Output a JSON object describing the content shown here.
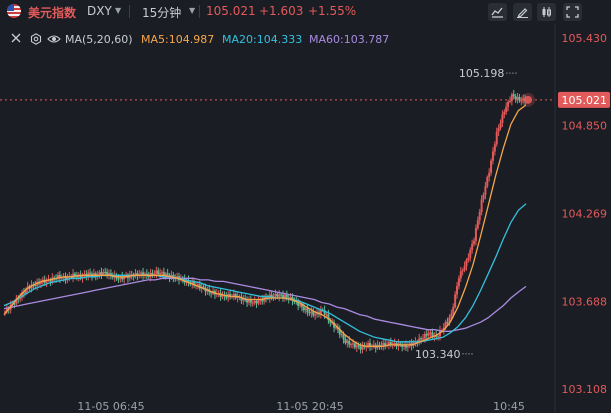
{
  "header": {
    "name": "美元指数",
    "code": "DXY",
    "interval": "15分钟",
    "price": "105.021",
    "change": "+1.603",
    "change_pct": "+1.55%"
  },
  "toolbar": {
    "icons": [
      "area-chart-icon",
      "draw-pen-icon",
      "candlestick-icon",
      "fullscreen-icon"
    ]
  },
  "indicator": {
    "icons": [
      "close-icon",
      "settings-icon",
      "eye-icon"
    ],
    "label": "MA(5,20,60)",
    "ma5": "MA5:104.987",
    "ma20": "MA20:104.333",
    "ma60": "MA60:103.787"
  },
  "colors": {
    "up": "#e35a5a",
    "down": "#5fbb97",
    "ma5": "#f5a64b",
    "ma20": "#34c0dd",
    "ma60": "#a98be0",
    "background": "#1b1d24"
  },
  "price_axis": [
    "105.430",
    "105.021",
    "104.850",
    "104.269",
    "103.688",
    "103.108"
  ],
  "time_axis": [
    "11-05 06:45",
    "11-05 20:45",
    "10:45"
  ],
  "annotations": {
    "high": "105.198",
    "low": "103.340"
  },
  "chart_data": {
    "type": "candlestick",
    "ylim": [
      103.108,
      105.43
    ],
    "last_price": 105.021,
    "close_path": [
      103.62,
      103.67,
      103.72,
      103.78,
      103.8,
      103.82,
      103.83,
      103.85,
      103.84,
      103.86,
      103.85,
      103.87,
      103.86,
      103.88,
      103.86,
      103.84,
      103.85,
      103.86,
      103.87,
      103.86,
      103.88,
      103.87,
      103.85,
      103.84,
      103.82,
      103.8,
      103.78,
      103.75,
      103.74,
      103.72,
      103.73,
      103.71,
      103.69,
      103.68,
      103.7,
      103.72,
      103.73,
      103.72,
      103.7,
      103.66,
      103.62,
      103.6,
      103.63,
      103.55,
      103.5,
      103.42,
      103.4,
      103.38,
      103.4,
      103.39,
      103.4,
      103.41,
      103.4,
      103.39,
      103.41,
      103.44,
      103.48,
      103.45,
      103.52,
      103.6,
      103.85,
      103.95,
      104.1,
      104.35,
      104.55,
      104.8,
      104.95,
      105.05,
      105.02,
      105.021
    ],
    "ma5_path": [
      103.6,
      103.66,
      103.72,
      103.77,
      103.8,
      103.82,
      103.83,
      103.84,
      103.85,
      103.85,
      103.86,
      103.86,
      103.86,
      103.86,
      103.86,
      103.85,
      103.85,
      103.86,
      103.86,
      103.86,
      103.86,
      103.86,
      103.85,
      103.84,
      103.82,
      103.8,
      103.78,
      103.76,
      103.74,
      103.73,
      103.72,
      103.72,
      103.7,
      103.7,
      103.7,
      103.71,
      103.71,
      103.71,
      103.7,
      103.68,
      103.65,
      103.62,
      103.6,
      103.57,
      103.52,
      103.47,
      103.43,
      103.4,
      103.39,
      103.39,
      103.39,
      103.4,
      103.4,
      103.4,
      103.4,
      103.42,
      103.44,
      103.46,
      103.49,
      103.55,
      103.65,
      103.78,
      103.93,
      104.12,
      104.32,
      104.52,
      104.7,
      104.86,
      104.95,
      104.987
    ],
    "ma20_path": [
      103.66,
      103.68,
      103.71,
      103.74,
      103.77,
      103.79,
      103.81,
      103.82,
      103.83,
      103.84,
      103.84,
      103.85,
      103.85,
      103.86,
      103.86,
      103.86,
      103.86,
      103.86,
      103.86,
      103.86,
      103.86,
      103.85,
      103.85,
      103.84,
      103.83,
      103.82,
      103.81,
      103.79,
      103.78,
      103.77,
      103.76,
      103.75,
      103.74,
      103.73,
      103.72,
      103.72,
      103.71,
      103.71,
      103.7,
      103.69,
      103.67,
      103.65,
      103.63,
      103.61,
      103.58,
      103.55,
      103.52,
      103.49,
      103.47,
      103.45,
      103.44,
      103.43,
      103.42,
      103.42,
      103.42,
      103.42,
      103.43,
      103.44,
      103.45,
      103.48,
      103.52,
      103.58,
      103.66,
      103.76,
      103.87,
      103.98,
      104.1,
      104.21,
      104.29,
      104.333
    ],
    "ma60_path": [
      103.64,
      103.65,
      103.66,
      103.67,
      103.68,
      103.69,
      103.7,
      103.71,
      103.72,
      103.73,
      103.74,
      103.75,
      103.76,
      103.77,
      103.78,
      103.79,
      103.8,
      103.81,
      103.82,
      103.83,
      103.83,
      103.84,
      103.84,
      103.84,
      103.84,
      103.84,
      103.83,
      103.83,
      103.82,
      103.82,
      103.81,
      103.8,
      103.79,
      103.78,
      103.77,
      103.76,
      103.75,
      103.74,
      103.73,
      103.72,
      103.71,
      103.7,
      103.68,
      103.67,
      103.65,
      103.64,
      103.62,
      103.6,
      103.59,
      103.57,
      103.56,
      103.55,
      103.54,
      103.53,
      103.52,
      103.51,
      103.5,
      103.5,
      103.49,
      103.49,
      103.5,
      103.51,
      103.53,
      103.55,
      103.58,
      103.62,
      103.66,
      103.71,
      103.75,
      103.787
    ]
  }
}
